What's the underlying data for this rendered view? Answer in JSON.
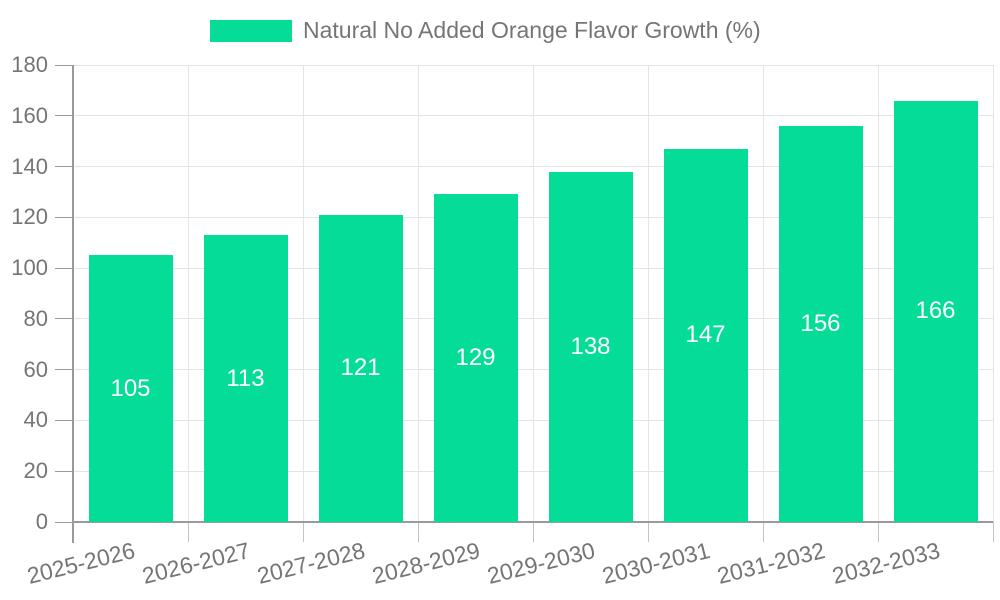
{
  "chart_data": {
    "type": "bar",
    "categories": [
      "2025-2026",
      "2026-2027",
      "2027-2028",
      "2028-2029",
      "2029-2030",
      "2030-2031",
      "2031-2032",
      "2032-2033"
    ],
    "series": [
      {
        "name": "Natural No Added Orange Flavor Growth (%)",
        "values": [
          105,
          113,
          121,
          129,
          138,
          147,
          156,
          166
        ]
      }
    ],
    "value_labels": [
      105,
      113,
      121,
      129,
      138,
      147,
      156,
      166
    ],
    "y_tick_labels": [
      "0",
      "20",
      "40",
      "60",
      "80",
      "100",
      "120",
      "140",
      "160",
      "180"
    ],
    "ylim": [
      0,
      180
    ],
    "ytick_step": 20,
    "xlabel": "",
    "ylabel": "",
    "legend_position": "top",
    "grid": true,
    "x_label_rotation_deg": -14,
    "colors": {
      "bar": "#05DC97",
      "bar_value_label": "#FFFFFF",
      "axis_text": "#757575",
      "grid_line": "#E4E4E4",
      "axis_line": "#9A9A9A",
      "tick_line": "#C4C4C4",
      "background": "#FFFFFF"
    }
  }
}
